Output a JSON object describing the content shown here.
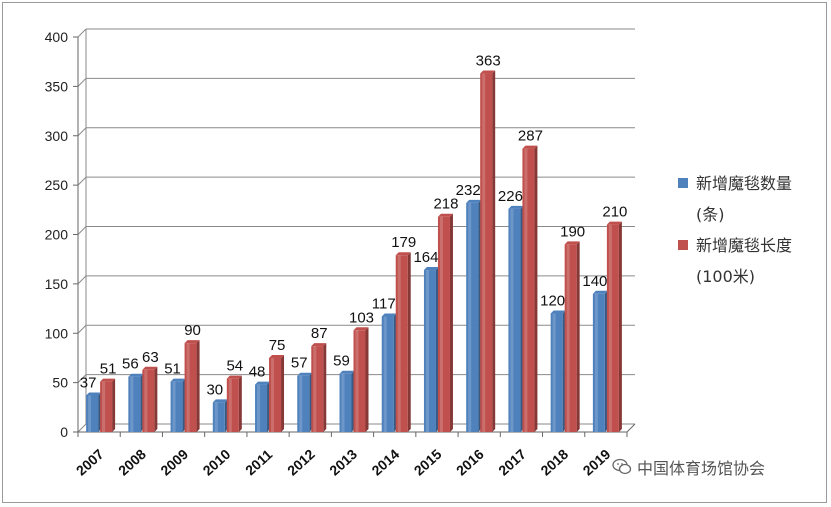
{
  "chart_data": {
    "type": "bar",
    "categories": [
      "2007",
      "2008",
      "2009",
      "2010",
      "2011",
      "2012",
      "2013",
      "2014",
      "2015",
      "2016",
      "2017",
      "2018",
      "2019"
    ],
    "series": [
      {
        "name": "新增魔毯数量\n(条)",
        "values": [
          37,
          56,
          51,
          30,
          48,
          57,
          59,
          117,
          164,
          232,
          226,
          120,
          140
        ],
        "color": "#4f81bd"
      },
      {
        "name": "新增魔毯长度\n(100米)",
        "values": [
          51,
          63,
          90,
          54,
          75,
          87,
          103,
          179,
          218,
          363,
          287,
          190,
          210
        ],
        "color": "#c0504d"
      }
    ],
    "ylim": [
      0,
      400
    ],
    "yticks": [
      0,
      50,
      100,
      150,
      200,
      250,
      300,
      350,
      400
    ],
    "grid": true,
    "legend_position": "right"
  },
  "legend": {
    "items": [
      {
        "line1": "新增魔毯数量",
        "line2": "(条)",
        "color": "#4f81bd"
      },
      {
        "line1": "新增魔毯长度",
        "line2": "(100米)",
        "color": "#c0504d"
      }
    ]
  },
  "watermark": {
    "text": "中国体育场馆协会",
    "icon": "wechat-icon"
  }
}
